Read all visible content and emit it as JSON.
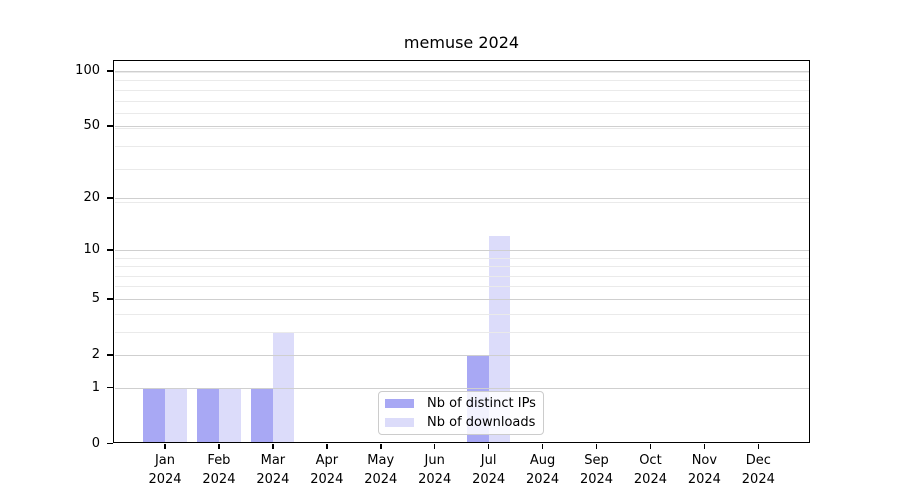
{
  "title": "memuse 2024",
  "colors": {
    "bar_ips": "#a8a8f4",
    "bar_downloads": "#dcdcfa",
    "grid_major": "#cfcfcf",
    "grid_minor": "#eaeaea",
    "spine": "#000000",
    "legend_border": "#cccccc"
  },
  "legend": {
    "items": [
      {
        "label": "Nb of distinct IPs",
        "color_key": "bar_ips"
      },
      {
        "label": "Nb of downloads",
        "color_key": "bar_downloads"
      }
    ]
  },
  "y_axis": {
    "scale": "log1p",
    "tick_labels": [
      {
        "label": "100",
        "value": 100
      },
      {
        "label": "50",
        "value": 50
      },
      {
        "label": "20",
        "value": 20
      },
      {
        "label": "10",
        "value": 10
      },
      {
        "label": "5",
        "value": 5
      },
      {
        "label": "2",
        "value": 2
      },
      {
        "label": "1",
        "value": 1
      },
      {
        "label": "0",
        "value": 0
      }
    ],
    "minor_gridline_values": [
      3,
      4,
      6,
      7,
      8,
      9,
      19,
      29,
      39,
      49,
      59,
      69,
      79,
      89,
      99
    ]
  },
  "x_axis": {
    "tick_labels": [
      {
        "month": "Jan",
        "year": "2024"
      },
      {
        "month": "Feb",
        "year": "2024"
      },
      {
        "month": "Mar",
        "year": "2024"
      },
      {
        "month": "Apr",
        "year": "2024"
      },
      {
        "month": "May",
        "year": "2024"
      },
      {
        "month": "Jun",
        "year": "2024"
      },
      {
        "month": "Jul",
        "year": "2024"
      },
      {
        "month": "Aug",
        "year": "2024"
      },
      {
        "month": "Sep",
        "year": "2024"
      },
      {
        "month": "Oct",
        "year": "2024"
      },
      {
        "month": "Nov",
        "year": "2024"
      },
      {
        "month": "Dec",
        "year": "2024"
      }
    ]
  },
  "chart_data": {
    "type": "bar",
    "title": "memuse 2024",
    "categories": [
      "Jan 2024",
      "Feb 2024",
      "Mar 2024",
      "Apr 2024",
      "May 2024",
      "Jun 2024",
      "Jul 2024",
      "Aug 2024",
      "Sep 2024",
      "Oct 2024",
      "Nov 2024",
      "Dec 2024"
    ],
    "series": [
      {
        "name": "Nb of distinct IPs",
        "key": "ips",
        "color": "#a8a8f4",
        "values": [
          1,
          1,
          1,
          0,
          0,
          0,
          2,
          0,
          0,
          0,
          0,
          0
        ]
      },
      {
        "name": "Nb of downloads",
        "key": "downloads",
        "color": "#dcdcfa",
        "values": [
          1,
          1,
          3,
          0,
          0,
          0,
          12,
          0,
          0,
          0,
          0,
          0
        ]
      }
    ],
    "xlabel": "",
    "ylabel": "",
    "yscale": "log1p",
    "yticks": [
      0,
      1,
      2,
      5,
      10,
      20,
      50,
      100
    ],
    "ylim": [
      0,
      115
    ],
    "grid": "both-major-and-minor",
    "legend_position": "lower center"
  }
}
